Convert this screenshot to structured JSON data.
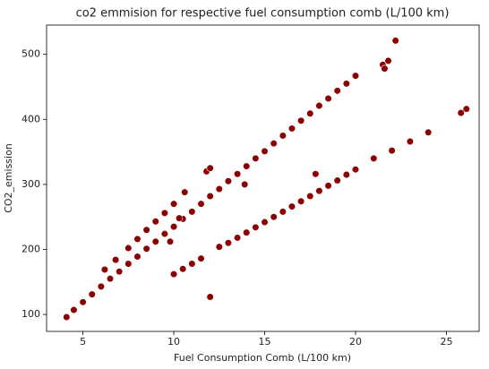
{
  "chart_data": {
    "type": "scatter",
    "title": "co2 emmision for respective fuel consumption comb (L/100 km)",
    "x_label": "Fuel Consumption Comb (L/100 km)",
    "y_label": "CO2_emission",
    "color": "#8b0000",
    "xlim": [
      3.0,
      26.8
    ],
    "ylim": [
      74,
      545
    ],
    "xticks": [
      5,
      10,
      15,
      20,
      25
    ],
    "yticks": [
      100,
      200,
      300,
      400,
      500
    ],
    "x": [
      4.1,
      4.5,
      5,
      5.5,
      6,
      6.5,
      7,
      7.5,
      8,
      8.5,
      9,
      9.5,
      10,
      10.5,
      11,
      11.5,
      12,
      12.5,
      13,
      13.5,
      14,
      14.5,
      15,
      15.5,
      16,
      16.5,
      17,
      17.5,
      18,
      18.5,
      19,
      19.5,
      20,
      21.5,
      22.2,
      21.8,
      21.6,
      6.2,
      6.8,
      7.5,
      8,
      8.5,
      9,
      9.5,
      10,
      10.6,
      11.8,
      12,
      10,
      10.5,
      11,
      11.5,
      12.5,
      13,
      13.5,
      14,
      14.5,
      15,
      15.5,
      16,
      16.5,
      17,
      17.5,
      18,
      18.5,
      19,
      19.5,
      20,
      21,
      22,
      23,
      24,
      25.8,
      26.1,
      12,
      17.8,
      13.9,
      9.8,
      10.3
    ],
    "values": [
      96,
      107,
      119,
      131,
      143,
      155,
      166,
      178,
      189,
      201,
      212,
      224,
      235,
      247,
      258,
      270,
      282,
      293,
      305,
      316,
      328,
      340,
      351,
      363,
      375,
      386,
      398,
      409,
      421,
      432,
      444,
      455,
      467,
      484,
      521,
      490,
      478,
      169,
      184,
      202,
      216,
      230,
      243,
      256,
      270,
      288,
      320,
      325,
      162,
      170,
      178,
      186,
      204,
      210,
      218,
      226,
      234,
      242,
      250,
      258,
      266,
      274,
      282,
      290,
      298,
      306,
      315,
      323,
      340,
      352,
      366,
      380,
      410,
      416,
      127,
      316,
      300,
      212,
      248
    ]
  }
}
